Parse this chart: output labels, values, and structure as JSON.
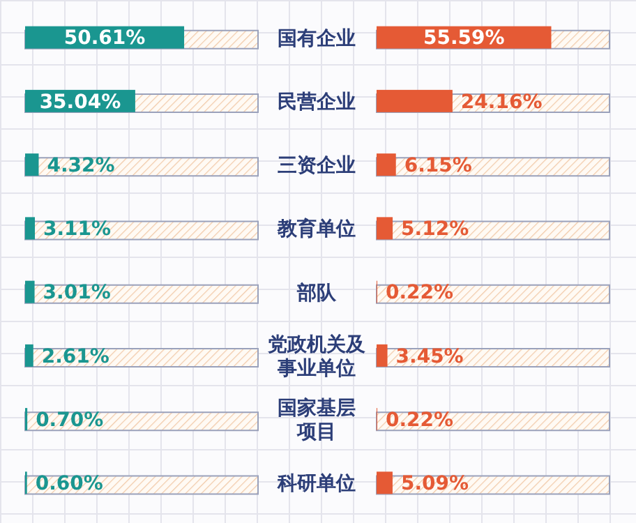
{
  "chart_data": [
    {
      "type": "bar",
      "orientation": "horizontal",
      "categories": [
        "国有企业",
        "民营企业",
        "三资企业",
        "教育单位",
        "部队",
        "党政机关及事业单位",
        "国家基层项目",
        "科研单位"
      ],
      "series": [
        {
          "color": "#1a9690",
          "values": [
            50.61,
            35.04,
            4.32,
            3.11,
            3.01,
            2.61,
            0.7,
            0.6
          ],
          "value_labels": [
            "50.61%",
            "35.04%",
            "4.32%",
            "3.11%",
            "3.01%",
            "2.61%",
            "0.70%",
            "0.60%"
          ]
        }
      ]
    },
    {
      "type": "bar",
      "orientation": "horizontal",
      "categories": [
        null,
        null,
        null,
        null,
        null,
        null,
        null,
        null
      ],
      "series": [
        {
          "color": "#e55a35",
          "values": [
            55.59,
            24.16,
            6.15,
            5.12,
            0.22,
            3.45,
            0.22,
            5.09
          ],
          "value_labels": [
            "55.59%",
            "24.16%",
            "6.15%",
            "5.12%",
            "0.22%",
            "3.45%",
            "0.22%",
            "5.09%"
          ]
        }
      ]
    }
  ]
}
